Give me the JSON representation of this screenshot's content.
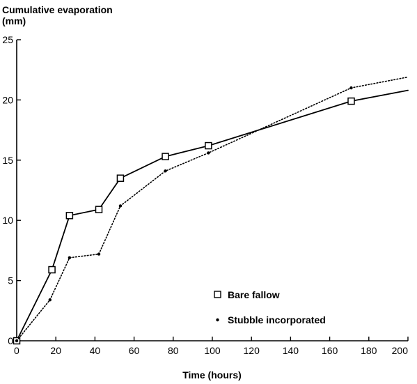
{
  "chart_data": {
    "type": "line",
    "title": "",
    "ylabel": [
      "Cumulative evaporation",
      "(mm)"
    ],
    "xlabel": "Time (hours)",
    "xlim": [
      0,
      200
    ],
    "ylim": [
      0,
      25
    ],
    "xticks": [
      0,
      20,
      40,
      60,
      80,
      100,
      120,
      140,
      160,
      180,
      200
    ],
    "yticks": [
      0,
      5,
      10,
      15,
      20,
      25
    ],
    "grid": false,
    "legend_placement": "lower-right",
    "series": [
      {
        "name": "Bare fallow",
        "line_style": "solid",
        "marker": "open-square",
        "color": "#000000",
        "x": [
          0,
          18,
          27,
          42,
          53,
          76,
          98,
          171,
          200
        ],
        "y": [
          0,
          5.9,
          10.4,
          10.9,
          13.5,
          15.3,
          16.2,
          19.9,
          20.8
        ],
        "marker_x": [
          0,
          18,
          27,
          42,
          53,
          76,
          98,
          171
        ]
      },
      {
        "name": "Stubble incorporated",
        "line_style": "dotted",
        "marker": "dot",
        "color": "#000000",
        "x": [
          0,
          17,
          27,
          42,
          53,
          76,
          98,
          171,
          200
        ],
        "y": [
          0,
          3.4,
          6.9,
          7.2,
          11.2,
          14.1,
          15.6,
          21.0,
          21.9
        ],
        "marker_x": [
          0,
          17,
          27,
          42,
          53,
          76,
          98,
          171
        ]
      }
    ]
  }
}
